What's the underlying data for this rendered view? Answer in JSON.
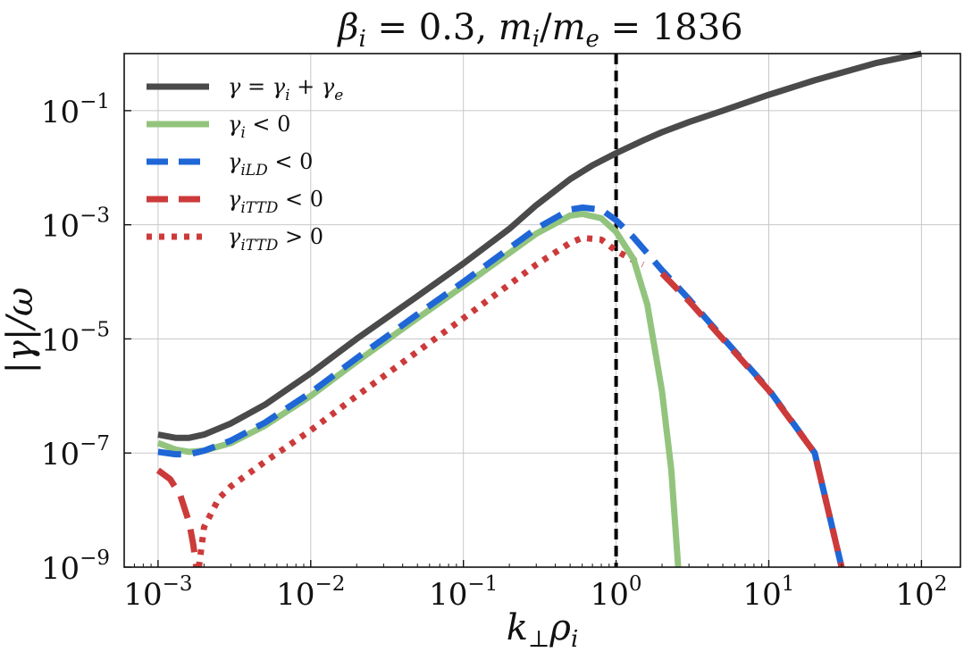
{
  "chart_data": {
    "type": "line",
    "title": "βi = 0.3, mi/me = 1836",
    "xlabel": "k⊥ρi",
    "ylabel": "|γ|/ω",
    "xscale": "log",
    "yscale": "log",
    "xlim": [
      0.0006,
      180
    ],
    "ylim": [
      1e-09,
      1
    ],
    "grid": true,
    "x_ticks": [
      {
        "value": 0.001,
        "base": "10",
        "exp": "−3"
      },
      {
        "value": 0.01,
        "base": "10",
        "exp": "−2"
      },
      {
        "value": 0.1,
        "base": "10",
        "exp": "−1"
      },
      {
        "value": 1,
        "base": "10",
        "exp": "0"
      },
      {
        "value": 10,
        "base": "10",
        "exp": "1"
      },
      {
        "value": 100,
        "base": "10",
        "exp": "2"
      }
    ],
    "y_ticks": [
      {
        "value": 1e-09,
        "base": "10",
        "exp": "−9"
      },
      {
        "value": 1e-07,
        "base": "10",
        "exp": "−7"
      },
      {
        "value": 1e-05,
        "base": "10",
        "exp": "−5"
      },
      {
        "value": 0.001,
        "base": "10",
        "exp": "−3"
      },
      {
        "value": 0.1,
        "base": "10",
        "exp": "−1"
      }
    ],
    "vline": {
      "x": 1,
      "color": "#000000",
      "style": "dashed"
    },
    "legend_position": "top-left",
    "series": [
      {
        "name": "γ = γi + γe",
        "color": "#4a4a4a",
        "style": "solid",
        "points": [
          [
            0.001,
            2.1e-07
          ],
          [
            0.0013,
            1.85e-07
          ],
          [
            0.0016,
            1.85e-07
          ],
          [
            0.002,
            2.1e-07
          ],
          [
            0.003,
            3.3e-07
          ],
          [
            0.005,
            7e-07
          ],
          [
            0.01,
            2.5e-06
          ],
          [
            0.02,
            1e-05
          ],
          [
            0.05,
            5.6e-05
          ],
          [
            0.1,
            0.00021
          ],
          [
            0.2,
            0.00085
          ],
          [
            0.3,
            0.0022
          ],
          [
            0.5,
            0.0063
          ],
          [
            0.7,
            0.011
          ],
          [
            1,
            0.018
          ],
          [
            1.5,
            0.03
          ],
          [
            2,
            0.042
          ],
          [
            3,
            0.063
          ],
          [
            5,
            0.1
          ],
          [
            10,
            0.19
          ],
          [
            20,
            0.34
          ],
          [
            50,
            0.68
          ],
          [
            100,
            1.0
          ]
        ]
      },
      {
        "name": "γi < 0",
        "color": "#93c47d",
        "style": "solid",
        "points": [
          [
            0.001,
            1.5e-07
          ],
          [
            0.0013,
            1.15e-07
          ],
          [
            0.0016,
            1.05e-07
          ],
          [
            0.002,
            1.1e-07
          ],
          [
            0.003,
            1.5e-07
          ],
          [
            0.005,
            3e-07
          ],
          [
            0.01,
            1e-06
          ],
          [
            0.02,
            4e-06
          ],
          [
            0.05,
            2.3e-05
          ],
          [
            0.1,
            8.5e-05
          ],
          [
            0.2,
            0.00032
          ],
          [
            0.3,
            0.0007
          ],
          [
            0.5,
            0.00145
          ],
          [
            0.6,
            0.00155
          ],
          [
            0.8,
            0.0013
          ],
          [
            1,
            0.00075
          ],
          [
            1.3,
            0.00025
          ],
          [
            1.6,
            4e-05
          ],
          [
            2,
            1.2e-06
          ],
          [
            2.3,
            5e-08
          ],
          [
            2.55,
            1e-09
          ]
        ]
      },
      {
        "name": "γiLD < 0",
        "color": "#1f66d6",
        "style": "dashed",
        "points": [
          [
            0.001,
            1.05e-07
          ],
          [
            0.0013,
            9.5e-08
          ],
          [
            0.0016,
            9.5e-08
          ],
          [
            0.002,
            1.1e-07
          ],
          [
            0.003,
            1.65e-07
          ],
          [
            0.005,
            3.4e-07
          ],
          [
            0.01,
            1.15e-06
          ],
          [
            0.02,
            4.6e-06
          ],
          [
            0.05,
            2.7e-05
          ],
          [
            0.1,
            0.0001
          ],
          [
            0.2,
            0.00039
          ],
          [
            0.3,
            0.00086
          ],
          [
            0.5,
            0.00185
          ],
          [
            0.6,
            0.002
          ],
          [
            0.8,
            0.00185
          ],
          [
            1,
            0.0012
          ],
          [
            1.3,
            0.0006
          ],
          [
            2,
            0.00016
          ],
          [
            3,
            5e-05
          ],
          [
            5,
            1.05e-05
          ],
          [
            10,
            1.3e-06
          ],
          [
            20,
            1e-07
          ],
          [
            30,
            1e-09
          ]
        ]
      },
      {
        "name": "γiTTD < 0",
        "color": "#cc3a3a",
        "style": "dashed",
        "points": [
          [
            0.001,
            5e-08
          ],
          [
            0.0012,
            3.5e-08
          ],
          [
            0.0014,
            1.8e-08
          ],
          [
            0.0016,
            6e-09
          ],
          [
            0.0017,
            2.5e-09
          ],
          [
            0.00178,
            1e-09
          ]
        ],
        "legend_continues": [
          [
            2,
            0.00014
          ],
          [
            3,
            4.6e-05
          ],
          [
            5,
            1e-05
          ],
          [
            10,
            1.25e-06
          ],
          [
            20,
            1e-07
          ],
          [
            30,
            1e-09
          ]
        ]
      },
      {
        "name": "γiTTD > 0",
        "color": "#cc3a3a",
        "style": "dotted",
        "points": [
          [
            0.00185,
            1e-09
          ],
          [
            0.002,
            5e-09
          ],
          [
            0.0025,
            1.6e-08
          ],
          [
            0.003,
            2.6e-08
          ],
          [
            0.005,
            7e-08
          ],
          [
            0.01,
            2.5e-07
          ],
          [
            0.02,
            1e-06
          ],
          [
            0.05,
            6e-06
          ],
          [
            0.1,
            2.3e-05
          ],
          [
            0.2,
            9e-05
          ],
          [
            0.3,
            0.0002
          ],
          [
            0.5,
            0.00048
          ],
          [
            0.6,
            0.00059
          ],
          [
            0.8,
            0.00055
          ],
          [
            1,
            0.00035
          ],
          [
            1.3,
            0.00024
          ],
          [
            1.5,
            0.0002
          ]
        ]
      }
    ]
  }
}
